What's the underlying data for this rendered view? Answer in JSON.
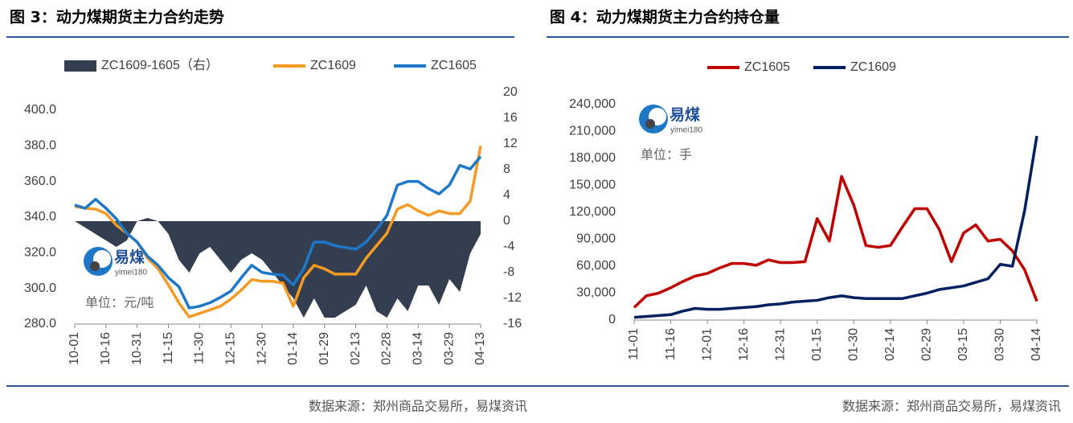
{
  "chart_data": [
    {
      "type": "line",
      "title": "图 3：动力煤期货主力合约走势",
      "source": "数据来源：郑州商品交易所，易煤资讯",
      "unit_note": "单位：元/吨",
      "watermark": "易煤",
      "watermark_sub": "yimei180",
      "categories": [
        "10-01",
        null,
        null,
        "10-16",
        null,
        null,
        "10-31",
        null,
        null,
        "11-15",
        null,
        null,
        "11-30",
        null,
        null,
        "12-15",
        null,
        null,
        "12-30",
        null,
        null,
        "01-14",
        null,
        null,
        "01-29",
        null,
        null,
        "02-13",
        null,
        null,
        "02-28",
        null,
        null,
        "03-14",
        null,
        null,
        "03-29",
        null,
        null,
        "04-13"
      ],
      "ylim": [
        280,
        400
      ],
      "yticks": [
        {
          "value": 280,
          "label": "280.0"
        },
        {
          "value": 300,
          "label": "300.0"
        },
        {
          "value": 320,
          "label": "320.0"
        },
        {
          "value": 340,
          "label": "340.0"
        },
        {
          "value": 360,
          "label": "360.0"
        },
        {
          "value": 380,
          "label": "380.0"
        },
        {
          "value": 400,
          "label": "400.0"
        }
      ],
      "y2lim": [
        -16,
        20
      ],
      "y2ticks": [
        -16,
        -12,
        -8,
        -4,
        0,
        4,
        8,
        12,
        16,
        20
      ],
      "series": [
        {
          "name": "ZC1609-1605（右）",
          "type": "area",
          "axis": "y2",
          "color": "#333f50",
          "values": [
            0,
            -1,
            -2,
            -3,
            -4,
            -3,
            0,
            0.5,
            0,
            -2,
            -6,
            -8,
            -5,
            -4,
            -6,
            -8,
            -6,
            -5,
            -6,
            -8,
            -10,
            -12,
            -15,
            -12,
            -15,
            -15,
            -14,
            -13,
            -10,
            -14,
            -15,
            -12,
            -14,
            -10,
            -10,
            -13,
            -9,
            -11,
            -5,
            -2
          ]
        },
        {
          "name": "ZC1609",
          "type": "line",
          "color": "#f59a23",
          "values": [
            346,
            345,
            344.5,
            342,
            335.5,
            331,
            326,
            317,
            311,
            302,
            292,
            284,
            286,
            288,
            290,
            294,
            299,
            305,
            304,
            304,
            303,
            290,
            306,
            313,
            311,
            308,
            308,
            308,
            317,
            324,
            331,
            344.5,
            347,
            343.5,
            341,
            343.5,
            342,
            342,
            349,
            380
          ]
        },
        {
          "name": "ZC1605",
          "type": "line",
          "color": "#1f77c8",
          "values": [
            346.8,
            345,
            350,
            345,
            339,
            331,
            326,
            318,
            313,
            306,
            301,
            289,
            290,
            292,
            295,
            298.5,
            306,
            313,
            309,
            308,
            307.5,
            302,
            311,
            326,
            326,
            324,
            323,
            322,
            326,
            333,
            341,
            358,
            360,
            360,
            356,
            353,
            358,
            369,
            367,
            374
          ]
        }
      ]
    },
    {
      "type": "line",
      "title": "图 4：动力煤期货主力合约持仓量",
      "source": "数据来源：郑州商品交易所，易煤资讯",
      "unit_note": "单位：手",
      "watermark": "易煤",
      "watermark_sub": "yimei180",
      "categories": [
        "11-01",
        null,
        null,
        "11-16",
        null,
        null,
        "12-01",
        null,
        null,
        "12-16",
        null,
        null,
        "12-31",
        null,
        null,
        "01-15",
        null,
        null,
        "01-30",
        null,
        null,
        "02-14",
        null,
        null,
        "02-29",
        null,
        null,
        "03-15",
        null,
        null,
        "03-30",
        null,
        null,
        "04-14"
      ],
      "ylim": [
        0,
        240000
      ],
      "yticks": [
        0,
        {
          "value": 30000,
          "label": "30,000"
        },
        {
          "value": 60000,
          "label": "60,000"
        },
        {
          "value": 90000,
          "label": "90,000"
        },
        {
          "value": 120000,
          "label": "120,000"
        },
        {
          "value": 150000,
          "label": "150,000"
        },
        {
          "value": 180000,
          "label": "180,000"
        },
        {
          "value": 210000,
          "label": "210,000"
        },
        {
          "value": 240000,
          "label": "240,000"
        }
      ],
      "series": [
        {
          "name": "ZC1605",
          "type": "line",
          "color": "#c00000",
          "values": [
            14000,
            27000,
            30000,
            36000,
            43000,
            49000,
            52000,
            58000,
            63000,
            63000,
            61000,
            67000,
            64000,
            64000,
            65000,
            113000,
            88000,
            160000,
            128000,
            83000,
            81000,
            83000,
            104000,
            124000,
            124000,
            101000,
            65000,
            97000,
            106000,
            88000,
            90000,
            77000,
            56000,
            21000
          ]
        },
        {
          "name": "ZC1609",
          "type": "line",
          "color": "#002060",
          "values": [
            3000,
            4000,
            5000,
            6000,
            10000,
            13000,
            12000,
            12000,
            13000,
            14000,
            15000,
            17000,
            18000,
            20000,
            21000,
            22000,
            25000,
            27000,
            25000,
            24000,
            24000,
            24000,
            24000,
            27000,
            30000,
            34000,
            36000,
            38000,
            42000,
            46000,
            62000,
            60000,
            122000,
            205000
          ]
        }
      ]
    }
  ]
}
